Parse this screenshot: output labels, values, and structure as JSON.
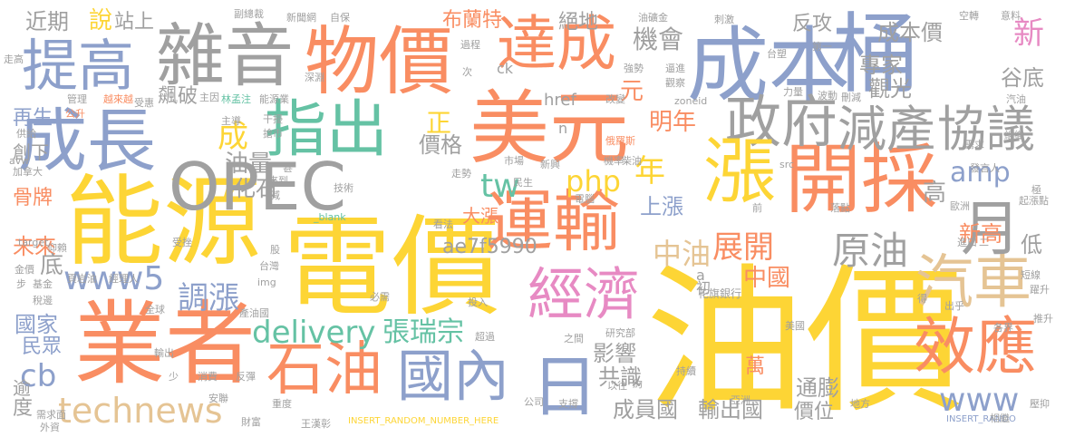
{
  "colors": {
    "yellow": "#fdd535",
    "orange": "#f98d62",
    "blue": "#8da0cb",
    "green": "#65c2a4",
    "pink": "#e78ac3",
    "lime": "#a6d854",
    "tan": "#e5c494",
    "gray": "#a0a0a0"
  },
  "words": [
    {
      "text": "油價",
      "c": "yellow"
    },
    {
      "text": "電價",
      "c": "yellow"
    },
    {
      "text": "能源",
      "c": "yellow"
    },
    {
      "text": "業者",
      "c": "orange"
    },
    {
      "text": "成本",
      "c": "blue"
    },
    {
      "text": "美元",
      "c": "orange"
    },
    {
      "text": "物價",
      "c": "orange"
    },
    {
      "text": "雜音",
      "c": "gray"
    },
    {
      "text": "提高",
      "c": "blue"
    },
    {
      "text": "成長",
      "c": "blue"
    },
    {
      "text": "OPEC",
      "c": "gray"
    },
    {
      "text": "運輸",
      "c": "orange"
    },
    {
      "text": "達成",
      "c": "orange"
    },
    {
      "text": "桶",
      "c": "blue"
    },
    {
      "text": "開採",
      "c": "orange"
    },
    {
      "text": "政府",
      "c": "gray"
    },
    {
      "text": "指出",
      "c": "green"
    },
    {
      "text": "經濟",
      "c": "pink"
    },
    {
      "text": "漲",
      "c": "yellow"
    },
    {
      "text": "石油",
      "c": "orange"
    },
    {
      "text": "國內",
      "c": "blue"
    },
    {
      "text": "效應",
      "c": "orange"
    },
    {
      "text": "汽車",
      "c": "tan"
    },
    {
      "text": "月",
      "c": "gray"
    },
    {
      "text": "日",
      "c": "blue"
    },
    {
      "text": "減產",
      "c": "gray"
    },
    {
      "text": "協議",
      "c": "gray"
    },
    {
      "text": "technews",
      "c": "tan"
    },
    {
      "text": "delivery",
      "c": "green"
    },
    {
      "text": "張瑞宗",
      "c": "green"
    },
    {
      "text": "www5",
      "c": "blue"
    },
    {
      "text": "原油",
      "c": "gray"
    },
    {
      "text": "展開",
      "c": "orange"
    },
    {
      "text": "www",
      "c": "blue"
    },
    {
      "text": "中油",
      "c": "tan"
    },
    {
      "text": "php",
      "c": "yellow"
    },
    {
      "text": "tw",
      "c": "green"
    },
    {
      "text": "年",
      "c": "yellow"
    },
    {
      "text": "調漲",
      "c": "blue"
    },
    {
      "text": "amp",
      "c": "blue"
    },
    {
      "text": "cb",
      "c": "blue"
    },
    {
      "text": "成",
      "c": "yellow"
    },
    {
      "text": "機會",
      "c": "gray"
    },
    {
      "text": "新",
      "c": "pink"
    },
    {
      "text": "成本價",
      "c": "gray"
    },
    {
      "text": "專家",
      "c": "gray"
    },
    {
      "text": "觀光",
      "c": "gray"
    },
    {
      "text": "谷底",
      "c": "gray"
    },
    {
      "text": "明年",
      "c": "orange"
    },
    {
      "text": "油量",
      "c": "gray"
    },
    {
      "text": "價格",
      "c": "gray"
    },
    {
      "text": "正",
      "c": "yellow"
    },
    {
      "text": "元",
      "c": "orange"
    },
    {
      "text": "化石",
      "c": "gray"
    },
    {
      "text": "上漲",
      "c": "blue"
    },
    {
      "text": "大漲",
      "c": "orange"
    },
    {
      "text": "ae7f5990",
      "c": "gray"
    },
    {
      "text": "中國",
      "c": "orange"
    },
    {
      "text": "影響",
      "c": "gray"
    },
    {
      "text": "共識",
      "c": "gray"
    },
    {
      "text": "成員國",
      "c": "gray"
    },
    {
      "text": "輸出國",
      "c": "gray"
    },
    {
      "text": "通膨",
      "c": "gray"
    },
    {
      "text": "價位",
      "c": "gray"
    },
    {
      "text": "萬",
      "c": "orange"
    },
    {
      "text": "高",
      "c": "gray"
    },
    {
      "text": "新高",
      "c": "orange"
    },
    {
      "text": "低",
      "c": "gray"
    },
    {
      "text": "再生",
      "c": "blue"
    },
    {
      "text": "飆破",
      "c": "gray"
    },
    {
      "text": "骨牌",
      "c": "orange"
    },
    {
      "text": "未來",
      "c": "orange"
    },
    {
      "text": "國家",
      "c": "blue"
    },
    {
      "text": "民眾",
      "c": "blue"
    },
    {
      "text": "底",
      "c": "gray"
    },
    {
      "text": "近期",
      "c": "gray"
    },
    {
      "text": "說",
      "c": "yellow"
    },
    {
      "text": "站上",
      "c": "gray"
    },
    {
      "text": "絕地",
      "c": "gray"
    },
    {
      "text": "布蘭特",
      "c": "orange"
    },
    {
      "text": "反攻",
      "c": "gray"
    },
    {
      "text": "度",
      "c": "gray"
    },
    {
      "text": "逾",
      "c": "gray"
    },
    {
      "text": "創下",
      "c": "gray"
    },
    {
      "text": "href",
      "c": "gray"
    },
    {
      "text": "ck",
      "c": "gray"
    },
    {
      "text": "n",
      "c": "gray"
    },
    {
      "text": "a",
      "c": "gray"
    },
    {
      "text": "初",
      "c": "gray"
    },
    {
      "text": "INSERT_RANDOM_NUMBER_HERE",
      "c": "yellow"
    },
    {
      "text": "INSERT_RANDO",
      "c": "blue"
    },
    {
      "text": "花旗銀行",
      "c": "gray"
    },
    {
      "text": "副總裁",
      "c": "gray"
    },
    {
      "text": "新聞網",
      "c": "gray"
    },
    {
      "text": "自保",
      "c": "gray"
    },
    {
      "text": "油礦金",
      "c": "gray"
    },
    {
      "text": "刺激",
      "c": "gray"
    },
    {
      "text": "空轉",
      "c": "gray"
    },
    {
      "text": "意料",
      "c": "gray"
    },
    {
      "text": "走高",
      "c": "gray"
    },
    {
      "text": "主因",
      "c": "gray"
    },
    {
      "text": "林孟注",
      "c": "green"
    },
    {
      "text": "能源業",
      "c": "gray"
    },
    {
      "text": "主導",
      "c": "gray"
    },
    {
      "text": "干擾",
      "c": "gray"
    },
    {
      "text": "搶市",
      "c": "gray"
    },
    {
      "text": "管理",
      "c": "gray"
    },
    {
      "text": "越來越",
      "c": "orange"
    },
    {
      "text": "受惠",
      "c": "gray"
    },
    {
      "text": "公升",
      "c": "orange"
    },
    {
      "text": "供給",
      "c": "gray"
    },
    {
      "text": "加拿大",
      "c": "gray"
    },
    {
      "text": "avw",
      "c": "gray"
    },
    {
      "text": "target",
      "c": "gray"
    },
    {
      "text": "仰賴",
      "c": "gray"
    },
    {
      "text": "金價",
      "c": "gray"
    },
    {
      "text": "步",
      "c": "gray"
    },
    {
      "text": "基金",
      "c": "gray"
    },
    {
      "text": "稅邊",
      "c": "gray"
    },
    {
      "text": "頁岩油",
      "c": "gray"
    },
    {
      "text": "經理人",
      "c": "gray"
    },
    {
      "text": "全球",
      "c": "gray"
    },
    {
      "text": "輸出",
      "c": "gray"
    },
    {
      "text": "少",
      "c": "gray"
    },
    {
      "text": "需求面",
      "c": "gray"
    },
    {
      "text": "外資",
      "c": "gray"
    },
    {
      "text": "安聯",
      "c": "gray"
    },
    {
      "text": "消費",
      "c": "gray"
    },
    {
      "text": "反彈",
      "c": "gray"
    },
    {
      "text": "財富",
      "c": "gray"
    },
    {
      "text": "重度",
      "c": "gray"
    },
    {
      "text": "王漢彰",
      "c": "gray"
    },
    {
      "text": "過程",
      "c": "gray"
    },
    {
      "text": "次",
      "c": "gray"
    },
    {
      "text": "強勢",
      "c": "gray"
    },
    {
      "text": "逼進",
      "c": "gray"
    },
    {
      "text": "觀察",
      "c": "gray"
    },
    {
      "text": "改變",
      "c": "gray"
    },
    {
      "text": "zoneid",
      "c": "gray"
    },
    {
      "text": "台塑",
      "c": "gray"
    },
    {
      "text": "第一",
      "c": "gray"
    },
    {
      "text": "力量",
      "c": "gray"
    },
    {
      "text": "波動",
      "c": "gray"
    },
    {
      "text": "刪減",
      "c": "gray"
    },
    {
      "text": "汽油",
      "c": "gray"
    },
    {
      "text": "組織",
      "c": "gray"
    },
    {
      "text": "需求",
      "c": "gray"
    },
    {
      "text": "發言人",
      "c": "gray"
    },
    {
      "text": "歐洲",
      "c": "gray"
    },
    {
      "text": "極",
      "c": "gray"
    },
    {
      "text": "起漲點",
      "c": "gray"
    },
    {
      "text": "進口",
      "c": "gray"
    },
    {
      "text": "二",
      "c": "gray"
    },
    {
      "text": "短線",
      "c": "gray"
    },
    {
      "text": "躍升",
      "c": "gray"
    },
    {
      "text": "出乎",
      "c": "gray"
    },
    {
      "text": "各界",
      "c": "gray"
    },
    {
      "text": "推升",
      "c": "gray"
    },
    {
      "text": "俄羅斯",
      "c": "orange"
    },
    {
      "text": "機率",
      "c": "gray"
    },
    {
      "text": "柴油",
      "c": "gray"
    },
    {
      "text": "市場",
      "c": "gray"
    },
    {
      "text": "新興",
      "c": "gray"
    },
    {
      "text": "走勢",
      "c": "gray"
    },
    {
      "text": "電腦",
      "c": "gray"
    },
    {
      "text": "民生",
      "c": "gray"
    },
    {
      "text": "技術",
      "c": "gray"
    },
    {
      "text": "_blank",
      "c": "green"
    },
    {
      "text": "來到",
      "c": "gray"
    },
    {
      "text": "台灣",
      "c": "gray"
    },
    {
      "text": "股",
      "c": "gray"
    },
    {
      "text": "img",
      "c": "gray"
    },
    {
      "text": "必需",
      "c": "gray"
    },
    {
      "text": "產油國",
      "c": "gray"
    },
    {
      "text": "看法",
      "c": "gray"
    },
    {
      "text": "投入",
      "c": "gray"
    },
    {
      "text": "超過",
      "c": "gray"
    },
    {
      "text": "之間",
      "c": "gray"
    },
    {
      "text": "研究部",
      "c": "gray"
    },
    {
      "text": "以往",
      "c": "gray"
    },
    {
      "text": "約",
      "c": "gray"
    },
    {
      "text": "持續",
      "c": "gray"
    },
    {
      "text": "美國",
      "c": "gray"
    },
    {
      "text": "亞洲",
      "c": "gray"
    },
    {
      "text": "地方",
      "c": "gray"
    },
    {
      "text": "支撐",
      "c": "gray"
    },
    {
      "text": "公司",
      "c": "gray"
    },
    {
      "text": "相繼",
      "c": "gray"
    },
    {
      "text": "壓抑",
      "c": "gray"
    },
    {
      "text": "前",
      "c": "gray"
    },
    {
      "text": "落點",
      "c": "gray"
    },
    {
      "text": "src",
      "c": "gray"
    },
    {
      "text": "得",
      "c": "gray"
    },
    {
      "text": "深淵",
      "c": "gray"
    },
    {
      "text": "甚",
      "c": "gray"
    },
    {
      "text": "減",
      "c": "gray"
    },
    {
      "text": "受挫",
      "c": "gray"
    }
  ]
}
